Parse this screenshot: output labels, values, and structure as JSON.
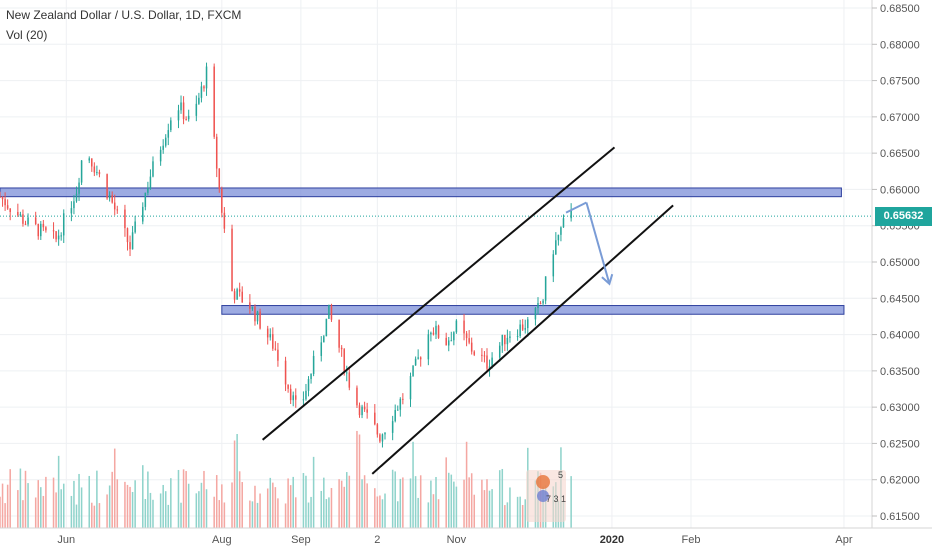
{
  "header": {
    "title": "New Zealand Dollar / U.S. Dollar, 1D, FXCM",
    "volume_label": "Vol (20)"
  },
  "price_axis": {
    "current_price": "0.65632"
  },
  "colors": {
    "up_candle": "#26a69a",
    "down_candle": "#ef5350",
    "up_volume": "#8fd3cb",
    "down_volume": "#f4a7a2",
    "zone_fill": "#7c8fd8",
    "zone_border": "#2d3f9e",
    "arrow": "#7a9cd6",
    "current_price": "#1fa59d"
  },
  "chart_data": {
    "type": "candlestick",
    "title": "New Zealand Dollar / U.S. Dollar, 1D, FXCM",
    "ylim": [
      0.615,
      0.685
    ],
    "y_ticks": [
      "0.68500",
      "0.68000",
      "0.67500",
      "0.67000",
      "0.66500",
      "0.66000",
      "0.65500",
      "0.65000",
      "0.64500",
      "0.64000",
      "0.63500",
      "0.63000",
      "0.62500",
      "0.62000",
      "0.61500"
    ],
    "x_ticks": [
      {
        "label": "Jun",
        "x": "2019-06-01"
      },
      {
        "label": "Aug",
        "x": "2019-08-01"
      },
      {
        "label": "Sep",
        "x": "2019-09-01"
      },
      {
        "label": "2",
        "x": "2019-10-01"
      },
      {
        "label": "Nov",
        "x": "2019-11-01"
      },
      {
        "label": "2020",
        "x": "2020-01-01",
        "bold": true
      },
      {
        "label": "Feb",
        "x": "2020-02-01"
      },
      {
        "label": "Apr",
        "x": "2020-04-01"
      }
    ],
    "x_range": [
      "2019-05-06",
      "2020-04-12"
    ],
    "close_path": [
      [
        "2019-05-06",
        0.659
      ],
      [
        "2019-05-16",
        0.6555
      ],
      [
        "2019-05-28",
        0.653
      ],
      [
        "2019-06-05",
        0.66
      ],
      [
        "2019-06-08",
        0.666
      ],
      [
        "2019-06-18",
        0.659
      ],
      [
        "2019-06-26",
        0.652
      ],
      [
        "2019-07-04",
        0.662
      ],
      [
        "2019-07-14",
        0.672
      ],
      [
        "2019-07-20",
        0.669
      ],
      [
        "2019-07-26",
        0.676
      ],
      [
        "2019-07-31",
        0.66
      ],
      [
        "2019-08-05",
        0.646
      ],
      [
        "2019-08-12",
        0.644
      ],
      [
        "2019-08-22",
        0.638
      ],
      [
        "2019-08-31",
        0.629
      ],
      [
        "2019-09-12",
        0.643
      ],
      [
        "2019-09-22",
        0.631
      ],
      [
        "2019-10-02",
        0.626
      ],
      [
        "2019-10-12",
        0.632
      ],
      [
        "2019-10-22",
        0.641
      ],
      [
        "2019-10-28",
        0.639
      ],
      [
        "2019-11-01",
        0.641
      ],
      [
        "2019-11-07",
        0.638
      ],
      [
        "2019-11-13",
        0.636
      ],
      [
        "2019-11-21",
        0.64
      ],
      [
        "2019-12-01",
        0.642
      ],
      [
        "2019-12-05",
        0.645
      ],
      [
        "2019-12-08",
        0.651
      ],
      [
        "2019-12-13",
        0.6552
      ],
      [
        "2019-12-16",
        0.6563
      ]
    ],
    "horizontal_zones": [
      {
        "from": "2019-05-06",
        "to": "2020-03-31",
        "low": 0.659,
        "high": 0.6602
      },
      {
        "from": "2019-08-01",
        "to": "2020-04-01",
        "low": 0.6428,
        "high": 0.644
      }
    ],
    "trend_lines": [
      {
        "from": [
          "2019-08-17",
          0.6255
        ],
        "to": [
          "2020-01-02",
          0.6658
        ]
      },
      {
        "from": [
          "2019-09-29",
          0.6208
        ],
        "to": [
          "2020-01-25",
          0.6578
        ]
      }
    ],
    "arrow_path": [
      [
        "2019-12-22",
        0.6582
      ],
      [
        "2019-12-31",
        0.647
      ]
    ],
    "current_price": 0.65632,
    "volume_series_name": "Vol (20)"
  }
}
